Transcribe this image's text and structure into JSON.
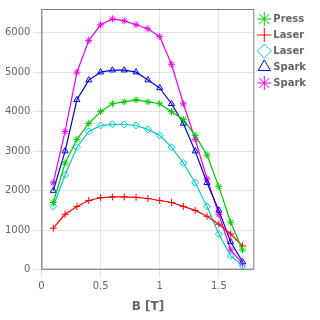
{
  "chart_data": {
    "type": "line",
    "xlabel": "B [T]",
    "xlim": [
      0,
      1.8
    ],
    "xticks": [
      0,
      0.5,
      1,
      1.5
    ],
    "ylim": [
      0,
      6600
    ],
    "yticks": [
      0,
      1000,
      2000,
      3000,
      4000,
      5000,
      6000
    ],
    "grid": true,
    "legend": "right",
    "x": [
      0.1,
      0.2,
      0.3,
      0.4,
      0.5,
      0.6,
      0.7,
      0.8,
      0.9,
      1.0,
      1.1,
      1.2,
      1.3,
      1.4,
      1.5,
      1.6,
      1.7
    ],
    "series": [
      {
        "name": "Press",
        "color": "#00cc00",
        "marker": "star",
        "values": [
          1700,
          2700,
          3300,
          3700,
          4000,
          4200,
          4250,
          4300,
          4250,
          4200,
          4000,
          3800,
          3400,
          2900,
          2100,
          1200,
          500
        ]
      },
      {
        "name": "Laser",
        "color": "#ff0000",
        "marker": "plus",
        "values": [
          1050,
          1400,
          1600,
          1750,
          1820,
          1840,
          1840,
          1830,
          1800,
          1750,
          1700,
          1600,
          1500,
          1350,
          1150,
          900,
          600
        ]
      },
      {
        "name": "Laser",
        "color": "#00cccc",
        "marker": "diamond",
        "values": [
          1600,
          2400,
          3100,
          3500,
          3650,
          3680,
          3680,
          3650,
          3550,
          3400,
          3100,
          2700,
          2200,
          1600,
          900,
          350,
          100
        ]
      },
      {
        "name": "Spark",
        "color": "#0000ee",
        "marker": "triangle",
        "values": [
          2000,
          3000,
          4300,
          4800,
          5000,
          5050,
          5050,
          5000,
          4800,
          4600,
          4200,
          3700,
          3000,
          2200,
          1500,
          700,
          200
        ]
      },
      {
        "name": "Spark",
        "color": "#ee00ee",
        "marker": "star",
        "values": [
          2200,
          3500,
          5000,
          5800,
          6200,
          6350,
          6300,
          6200,
          6100,
          5900,
          5200,
          4200,
          3300,
          2300,
          1400,
          500,
          150
        ]
      }
    ]
  }
}
